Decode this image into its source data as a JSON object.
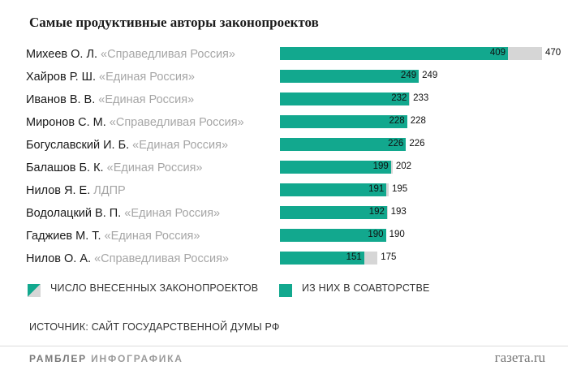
{
  "chart_data": {
    "type": "bar",
    "orientation": "horizontal",
    "title": "Самые продуктивные авторы законопроектов",
    "categories": [
      {
        "name": "Михеев О. Л.",
        "party": "«Справедливая Россия»"
      },
      {
        "name": "Хайров Р. Ш.",
        "party": "«Единая Россия»"
      },
      {
        "name": "Иванов В. В.",
        "party": "«Единая Россия»"
      },
      {
        "name": "Миронов С. М.",
        "party": "«Справедливая Россия»"
      },
      {
        "name": "Богуславский И. Б.",
        "party": "«Единая Россия»"
      },
      {
        "name": "Балашов Б. К.",
        "party": "«Единая Россия»"
      },
      {
        "name": "Нилов Я. Е.",
        "party": "ЛДПР"
      },
      {
        "name": "Водолацкий В. П.",
        "party": "«Единая Россия»"
      },
      {
        "name": "Гаджиев М. Т.",
        "party": "«Единая Россия»"
      },
      {
        "name": "Нилов О. А.",
        "party": "«Справедливая Россия»"
      }
    ],
    "series": [
      {
        "name": "ЧИСЛО ВНЕСЕННЫХ ЗАКОНОПРОЕКТОВ",
        "values": [
          470,
          249,
          233,
          228,
          226,
          202,
          195,
          193,
          190,
          175
        ],
        "color": "#d6d6d6"
      },
      {
        "name": "ИЗ НИХ В СОАВТОРСТВЕ",
        "values": [
          409,
          249,
          232,
          228,
          226,
          199,
          191,
          192,
          190,
          151
        ],
        "color": "#12a88e"
      }
    ],
    "xlim": [
      0,
      470
    ],
    "grid": false,
    "legend_position": "bottom"
  },
  "source": "ИСТОЧНИК: САЙТ ГОСУДАРСТВЕННОЙ ДУМЫ РФ",
  "footer": {
    "brand_bold": "РАМБЛЕР",
    "brand_light": "ИНФОГРАФИКА",
    "site": "газета.ru"
  },
  "colors": {
    "accent": "#12a88e",
    "total": "#d6d6d6",
    "party": "#a6a6a6"
  }
}
